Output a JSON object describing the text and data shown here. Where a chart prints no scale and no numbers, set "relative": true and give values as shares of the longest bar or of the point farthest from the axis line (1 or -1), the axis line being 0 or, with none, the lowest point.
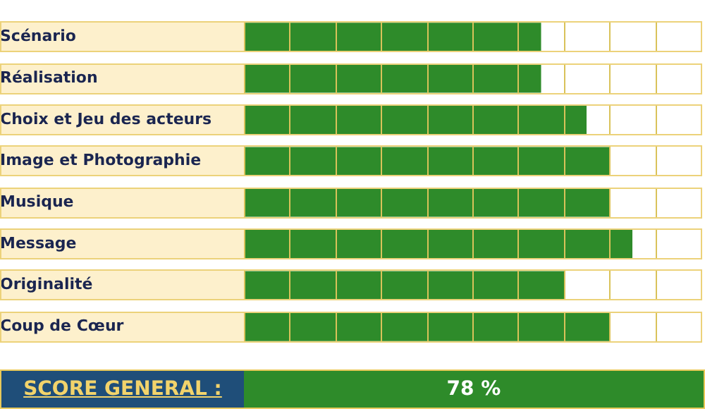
{
  "chart_data": {
    "type": "bar",
    "orientation": "horizontal",
    "relative": true,
    "categories": [
      "Scénario",
      "Réalisation",
      "Choix et Jeu des acteurs",
      "Image et Photographie",
      "Musique",
      "Message",
      "Originalité",
      "Coup de Cœur"
    ],
    "values": [
      0.765,
      0.765,
      0.882,
      0.941,
      0.941,
      1,
      0.824,
      0.941
    ],
    "color": "#2e8b2a",
    "annotations": [
      "SCORE GENERAL :",
      "78 %"
    ]
  }
}
